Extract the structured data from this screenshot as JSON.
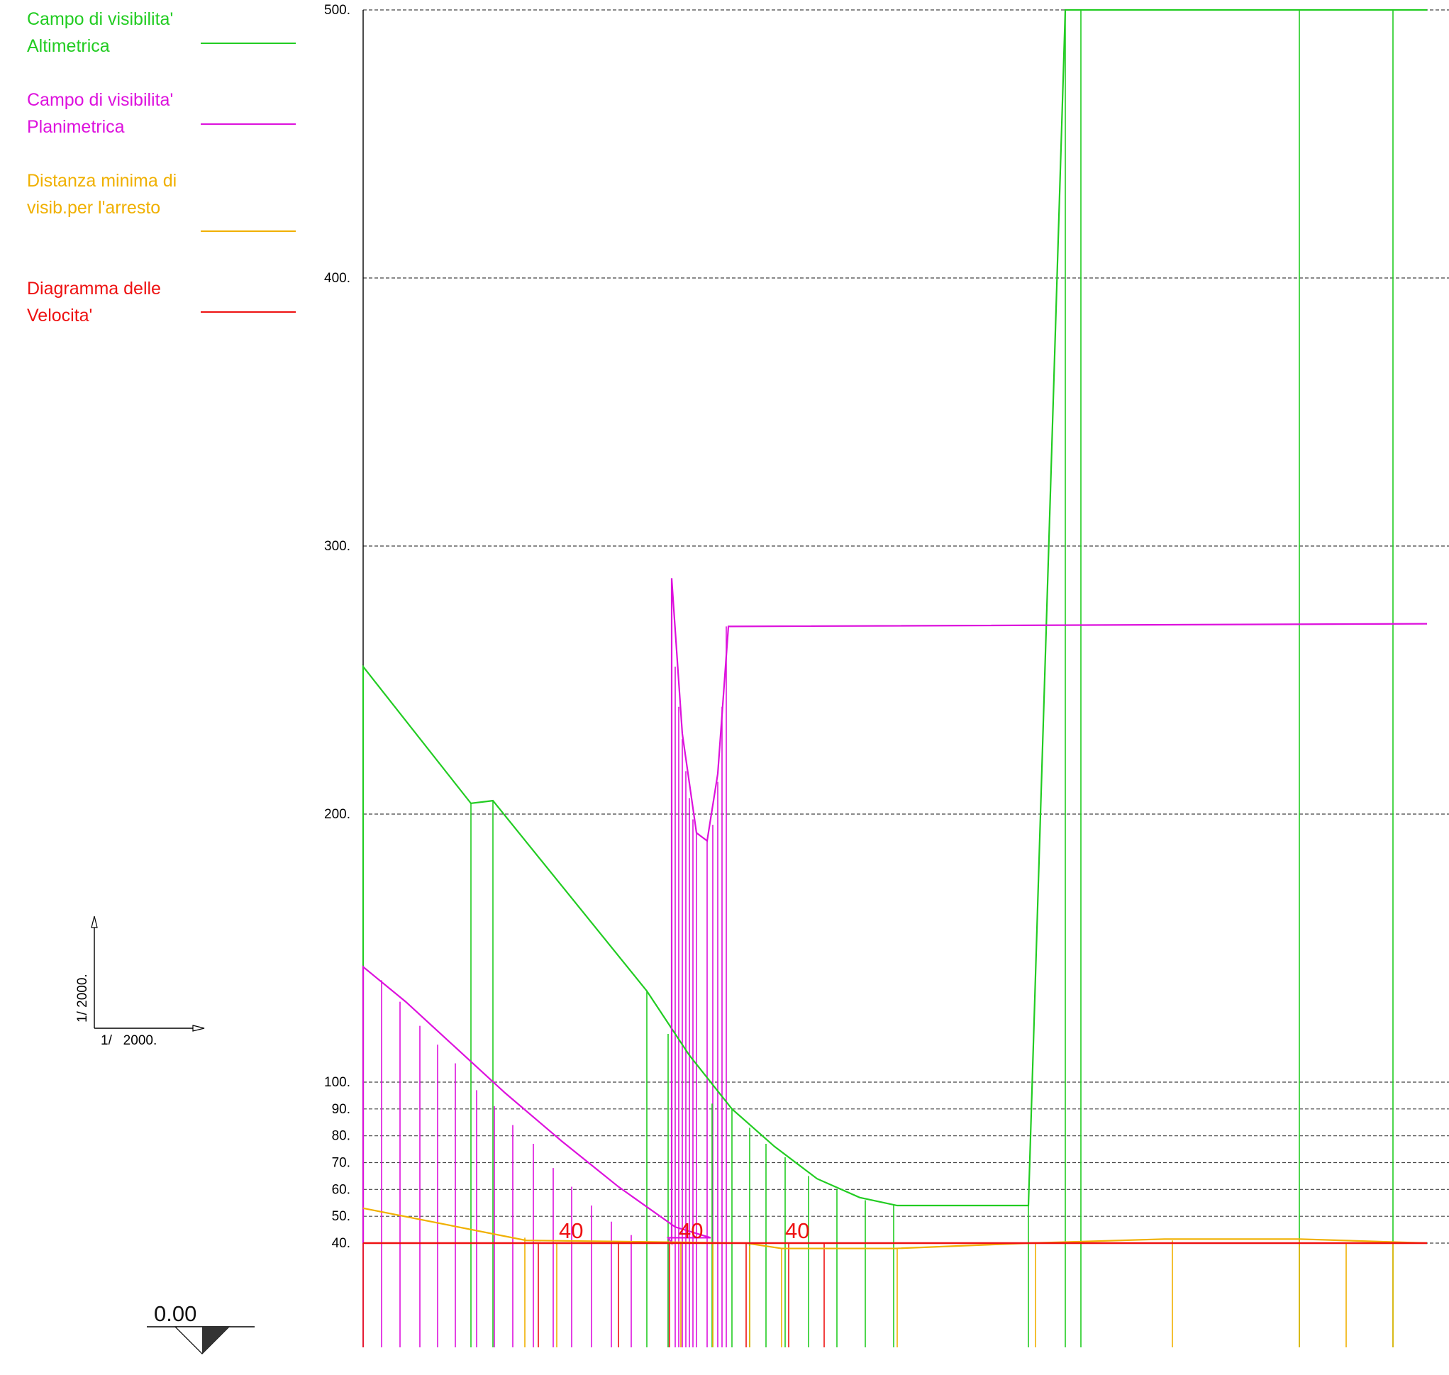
{
  "legend": {
    "altimetrica": {
      "line1": "Campo di visibilita'",
      "line2": "Altimetrica",
      "color": "#22cc22"
    },
    "planimetrica": {
      "line1": "Campo di visibilita'",
      "line2": "Planimetrica",
      "color": "#dd11dd"
    },
    "arresto": {
      "line1": "Distanza minima di",
      "line2": "visib.per l'arresto",
      "color": "#f0b000"
    },
    "velocita": {
      "line1": "Diagramma delle",
      "line2": "Velocita'",
      "color": "#ee1111"
    }
  },
  "scale_widget": {
    "vertical": "1/ 2000.",
    "horizontal": "1/   2000."
  },
  "level_label": "0.00",
  "chart_data": {
    "type": "line",
    "y_ticks": [
      "40.",
      "50.",
      "60.",
      "70.",
      "80.",
      "90.",
      "100.",
      "200.",
      "300.",
      "400.",
      "500."
    ],
    "grid": true,
    "note_y_axis": "two-part vertical scale: 40–100 expanded (10 per 38px), 100–500 (100 per 378px)",
    "series": [
      {
        "name": "Campo di visibilita' Altimetrica",
        "color": "#22cc22",
        "points": [
          [
            0,
            40
          ],
          [
            0,
            255
          ],
          [
            152,
            204
          ],
          [
            183,
            205
          ],
          [
            400,
            134
          ],
          [
            460,
            110
          ],
          [
            520,
            90
          ],
          [
            580,
            76
          ],
          [
            640,
            64
          ],
          [
            700,
            57
          ],
          [
            753,
            54
          ],
          [
            938,
            54
          ],
          [
            990,
            500
          ],
          [
            1012,
            500
          ],
          [
            1500,
            500
          ]
        ]
      },
      {
        "name": "Campo di visibilita' Planimetrica",
        "color": "#dd11dd",
        "points": [
          [
            0,
            40
          ],
          [
            0,
            143
          ],
          [
            60,
            130
          ],
          [
            130,
            113
          ],
          [
            200,
            96
          ],
          [
            280,
            78
          ],
          [
            360,
            61
          ],
          [
            440,
            46
          ],
          [
            490,
            42
          ],
          [
            430,
            42
          ],
          [
            435,
            40
          ],
          [
            435,
            288
          ],
          [
            450,
            230
          ],
          [
            470,
            193
          ],
          [
            485,
            190
          ],
          [
            500,
            215
          ],
          [
            515,
            270
          ],
          [
            1500,
            271
          ]
        ]
      },
      {
        "name": "Distanza minima di visib.per l'arresto",
        "color": "#f0b000",
        "points": [
          [
            0,
            53
          ],
          [
            230,
            41
          ],
          [
            540,
            40
          ],
          [
            590,
            38
          ],
          [
            750,
            38
          ],
          [
            940,
            40
          ],
          [
            1130,
            41.5
          ],
          [
            1320,
            41.5
          ],
          [
            1500,
            40
          ]
        ]
      },
      {
        "name": "Diagramma delle Velocita'",
        "color": "#ee1111",
        "points": [
          [
            0,
            40
          ],
          [
            1500,
            40
          ]
        ]
      }
    ],
    "speed_labels": [
      "40",
      "40",
      "40"
    ]
  }
}
